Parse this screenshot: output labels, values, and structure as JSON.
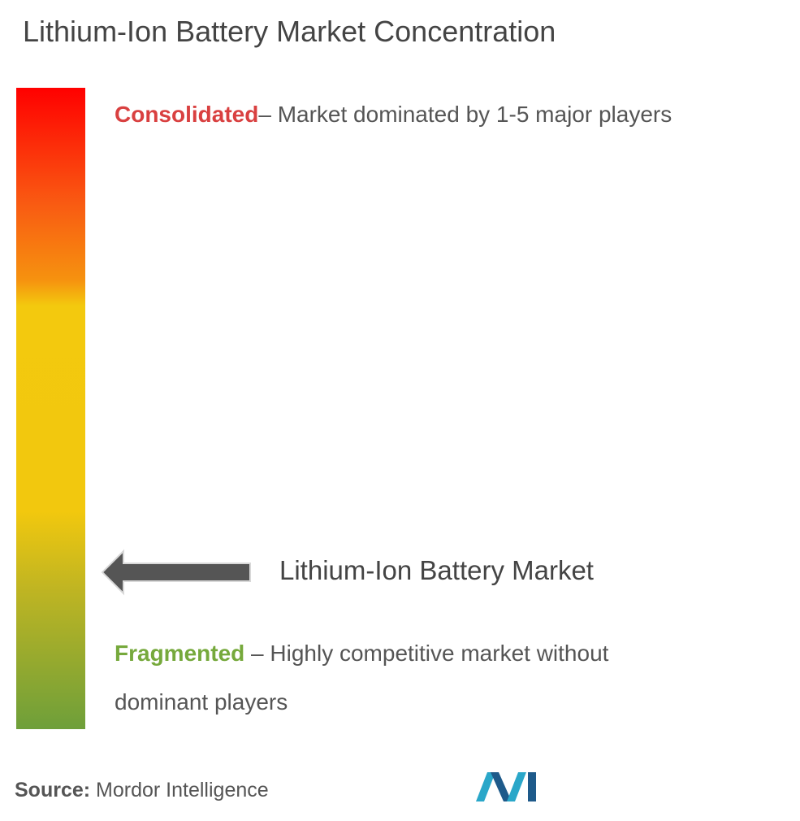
{
  "title": "Lithium-Ion Battery Market Concentration",
  "consolidated": {
    "label": "Consolidated",
    "description": "– Market dominated by 1-5 major players"
  },
  "marker": {
    "label": "Lithium-Ion Battery Market"
  },
  "fragmented": {
    "label": "Fragmented",
    "description": "– Highly competitive market without dominant players"
  },
  "source": {
    "label": "Source:",
    "text": "Mordor Intelligence"
  }
}
